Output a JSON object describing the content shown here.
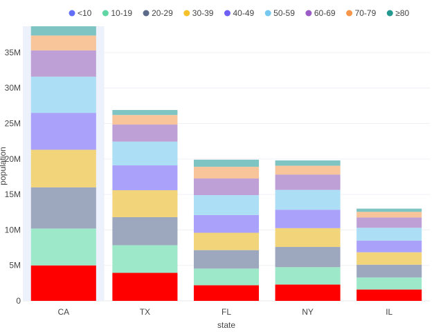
{
  "chart_data": {
    "type": "bar",
    "stacked": true,
    "xlabel": "state",
    "ylabel": "population",
    "ylim": [
      0,
      38700000
    ],
    "yticks": [
      0,
      5000000,
      10000000,
      15000000,
      20000000,
      25000000,
      30000000,
      35000000
    ],
    "ytick_labels": [
      "0",
      "5M",
      "10M",
      "15M",
      "20M",
      "25M",
      "30M",
      "35M"
    ],
    "categories": [
      "CA",
      "TX",
      "FL",
      "NY",
      "IL"
    ],
    "highlighted_category": "CA",
    "legend_position": "top",
    "grid": true,
    "series": [
      {
        "name": "<10",
        "color": "#ff0000",
        "legend_color": "#636efa",
        "values": [
          5000000,
          3950000,
          2200000,
          2300000,
          1600000
        ]
      },
      {
        "name": "10-19",
        "color": "#9de8c9",
        "legend_color": "#5fd6a4",
        "values": [
          5200000,
          3900000,
          2350000,
          2450000,
          1700000
        ]
      },
      {
        "name": "20-29",
        "color": "#9da8be",
        "legend_color": "#5c6b8a",
        "values": [
          5800000,
          3950000,
          2600000,
          2850000,
          1800000
        ]
      },
      {
        "name": "30-39",
        "color": "#f2d47a",
        "legend_color": "#f5c22b",
        "values": [
          5300000,
          3800000,
          2450000,
          2650000,
          1750000
        ]
      },
      {
        "name": "40-49",
        "color": "#aaa2fa",
        "legend_color": "#6e5ff5",
        "values": [
          5200000,
          3500000,
          2500000,
          2600000,
          1650000
        ]
      },
      {
        "name": "50-59",
        "color": "#acdef5",
        "legend_color": "#76c8ee",
        "values": [
          5100000,
          3350000,
          2800000,
          2800000,
          1800000
        ]
      },
      {
        "name": "60-69",
        "color": "#bea0d6",
        "legend_color": "#9b5cc7",
        "values": [
          3700000,
          2400000,
          2350000,
          2150000,
          1450000
        ]
      },
      {
        "name": "70-79",
        "color": "#f8c49a",
        "legend_color": "#f7954a",
        "values": [
          2100000,
          1350000,
          1650000,
          1250000,
          800000
        ]
      },
      {
        "name": "≥80",
        "color": "#7ec4c2",
        "legend_color": "#23998f",
        "values": [
          1300000,
          700000,
          1000000,
          750000,
          450000
        ]
      }
    ]
  }
}
